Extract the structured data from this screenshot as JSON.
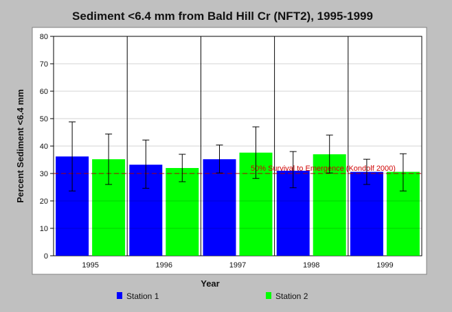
{
  "chart_data": {
    "type": "bar",
    "title": "Sediment <6.4 mm from Bald Hill Cr (NFT2), 1995-1999",
    "xlabel": "Year",
    "ylabel": "Percent Sediment <6.4 mm",
    "categories": [
      "1995",
      "1996",
      "1997",
      "1998",
      "1999"
    ],
    "ylim": [
      0,
      80
    ],
    "yticks": [
      0,
      10,
      20,
      30,
      40,
      50,
      60,
      70,
      80
    ],
    "grid": "vertical lines between categories",
    "legend_position": "bottom",
    "series": [
      {
        "name": "Station 1",
        "color": "#0000ff",
        "values": [
          36.2,
          33.2,
          35.2,
          31.0,
          30.6
        ],
        "error_low": [
          23.6,
          24.6,
          30.2,
          24.8,
          26.0
        ],
        "error_high": [
          48.8,
          42.2,
          40.4,
          38.0,
          35.2
        ]
      },
      {
        "name": "Station 2",
        "color": "#00ff00",
        "values": [
          35.2,
          32.0,
          37.6,
          37.0,
          30.6
        ],
        "error_low": [
          26.0,
          27.0,
          28.2,
          30.2,
          23.6
        ],
        "error_high": [
          44.4,
          37.0,
          47.0,
          44.0,
          37.2
        ]
      }
    ],
    "reference_line": {
      "value": 30,
      "label": "50% Survival to Emergence (Kondolf 2000)",
      "color": "#d00000"
    }
  }
}
